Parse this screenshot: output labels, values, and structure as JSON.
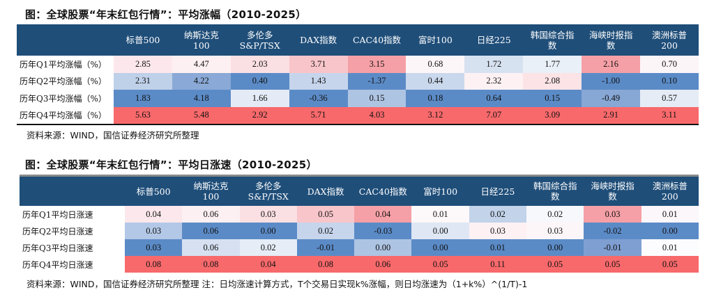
{
  "table1": {
    "title": "图：全球股票“年末红包行情”：平均涨幅（2010-2025）",
    "headers": [
      "",
      "标普500",
      "纳斯达克\n100",
      "多伦多\nS&P/TSX",
      "DAX指数",
      "CAC40指数",
      "富时100",
      "日经225",
      "韩国综合指\n数",
      "海峡时报指\n数",
      "澳洲标普\n200"
    ],
    "rows": [
      {
        "label": "历年Q1平均涨幅（%）",
        "values": [
          "2.85",
          "4.47",
          "2.03",
          "3.71",
          "3.15",
          "0.68",
          "1.72",
          "1.77",
          "2.16",
          "0.70"
        ],
        "colors": [
          "#fce8ec",
          "#fdf0f2",
          "#fbe0e3",
          "#f8c5ca",
          "#f5a0a6",
          "#fdf6f8",
          "#d7e2f1",
          "#eaf0f8",
          "#f5a0a6",
          "#fcf5f8"
        ]
      },
      {
        "label": "历年Q2平均涨幅（%）",
        "values": [
          "2.31",
          "4.22",
          "0.40",
          "1.43",
          "-1.37",
          "0.44",
          "2.32",
          "2.08",
          "-1.00",
          "0.10"
        ],
        "colors": [
          "#bfd0e9",
          "#8aa9d6",
          "#5b8bc7",
          "#c6d5ec",
          "#5b8bc7",
          "#cad8ed",
          "#fdf1f4",
          "#fbe3e6",
          "#5b8bc7",
          "#5b8bc7"
        ]
      },
      {
        "label": "历年Q3平均涨幅（%）",
        "values": [
          "1.83",
          "4.18",
          "1.66",
          "-0.36",
          "0.15",
          "0.18",
          "0.64",
          "0.15",
          "-0.49",
          "0.57"
        ],
        "colors": [
          "#5b8bc7",
          "#5b8bc7",
          "#e4ebf6",
          "#5b8bc7",
          "#aec4e3",
          "#5b8bc7",
          "#5b8bc7",
          "#5b8bc7",
          "#87a7d5",
          "#e5ecf6"
        ]
      },
      {
        "label": "历年Q4平均涨幅（%）",
        "values": [
          "5.63",
          "5.48",
          "2.92",
          "5.71",
          "4.03",
          "3.12",
          "7.07",
          "3.09",
          "2.91",
          "3.11"
        ],
        "colors": [
          "#f8696b",
          "#f8696b",
          "#f8696b",
          "#f8696b",
          "#f8696b",
          "#f8696b",
          "#f8696b",
          "#f8696b",
          "#f8696b",
          "#f8696b"
        ]
      }
    ],
    "source": "资料来源：WIND，国信证券经济研究所整理"
  },
  "table2": {
    "title": "图：全球股票“年末红包行情”：平均日涨速（2010-2025）",
    "headers": [
      "",
      "标普500",
      "纳斯达克\n100",
      "多伦多\nS&P/TSX",
      "DAX指数",
      "CAC40指数",
      "富时100",
      "日经225",
      "韩国综合指\n数",
      "海峡时报指\n数",
      "澳洲标普\n200"
    ],
    "rows": [
      {
        "label": "历年Q1平均日涨速",
        "values": [
          "0.04",
          "0.06",
          "0.03",
          "0.05",
          "0.04",
          "0.01",
          "0.02",
          "0.02",
          "0.03",
          "0.01"
        ],
        "colors": [
          "#fce8ec",
          "#fdf0f2",
          "#fbe0e3",
          "#f8c5ca",
          "#f5a0a6",
          "#fdf8fa",
          "#c2d3ea",
          "#f6f8fc",
          "#f5a0a6",
          "#fcf7fa"
        ]
      },
      {
        "label": "历年Q2平均日涨速",
        "values": [
          "0.03",
          "0.06",
          "0.00",
          "0.02",
          "-0.03",
          "0.00",
          "0.03",
          "0.03",
          "-0.02",
          "0.00"
        ],
        "colors": [
          "#b3c8e6",
          "#5b8bc7",
          "#5b8bc7",
          "#c6d5ec",
          "#5b8bc7",
          "#dfe7f4",
          "#fdf1f4",
          "#fdf6f8",
          "#5b8bc7",
          "#5b8bc7"
        ]
      },
      {
        "label": "历年Q3平均日涨速",
        "values": [
          "0.03",
          "0.06",
          "0.02",
          "-0.01",
          "0.00",
          "0.00",
          "0.01",
          "0.00",
          "-0.01",
          "0.01"
        ],
        "colors": [
          "#5b8bc7",
          "#d6e0f1",
          "#e6edf7",
          "#5b8bc7",
          "#aec4e3",
          "#5b8bc7",
          "#5b8bc7",
          "#5b8bc7",
          "#7f9fd2",
          "#fcfcfe"
        ]
      },
      {
        "label": "历年Q4平均日涨速",
        "values": [
          "0.08",
          "0.08",
          "0.04",
          "0.08",
          "0.06",
          "0.05",
          "0.11",
          "0.05",
          "0.05",
          "0.05"
        ],
        "colors": [
          "#f8696b",
          "#f8696b",
          "#f8696b",
          "#f8696b",
          "#f8696b",
          "#f8696b",
          "#f8696b",
          "#f8696b",
          "#f8696b",
          "#f8696b"
        ]
      }
    ],
    "source": "资料来源：WIND，国信证券经济研究所整理  注：日均涨速计算方式，T个交易日实现k%涨幅，则日均涨速为（1+k%）^(1/T)-1"
  }
}
